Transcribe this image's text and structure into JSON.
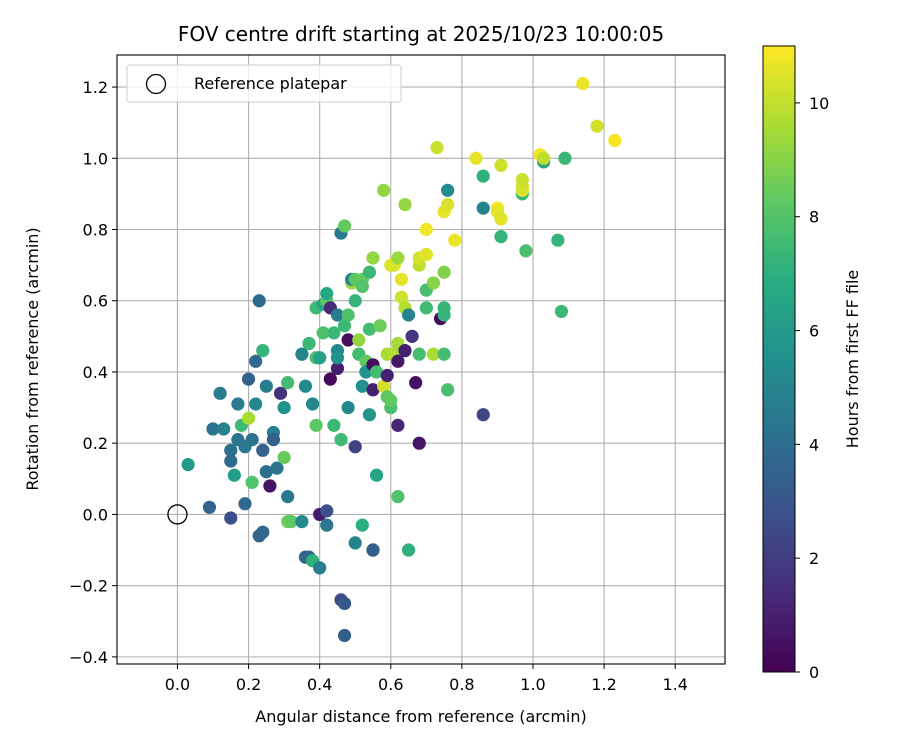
{
  "chart_data": {
    "type": "scatter",
    "title": "FOV centre drift starting at 2025/10/23 10:00:05",
    "xlabel": "Angular distance from reference (arcmin)",
    "ylabel": "Rotation from reference (arcmin)",
    "xlim": [
      -0.17,
      1.54
    ],
    "ylim": [
      -0.42,
      1.29
    ],
    "xticks": [
      0.0,
      0.2,
      0.4,
      0.6,
      0.8,
      1.0,
      1.2,
      1.4
    ],
    "xtick_labels": [
      "0.0",
      "0.2",
      "0.4",
      "0.6",
      "0.8",
      "1.0",
      "1.2",
      "1.4"
    ],
    "yticks": [
      -0.4,
      -0.2,
      0.0,
      0.2,
      0.4,
      0.6,
      0.8,
      1.0,
      1.2
    ],
    "ytick_labels": [
      "−0.4",
      "−0.2",
      "0.0",
      "0.2",
      "0.4",
      "0.6",
      "0.8",
      "1.0",
      "1.2"
    ],
    "grid": true,
    "legend": {
      "position": "top-left",
      "entries": [
        {
          "label": "Reference platepar",
          "marker": "open-circle"
        }
      ]
    },
    "reference_point": {
      "x": 0.0,
      "y": 0.0
    },
    "colorbar": {
      "label": "Hours from first FF file",
      "range": [
        0,
        11
      ],
      "ticks": [
        0,
        2,
        4,
        6,
        8,
        10
      ],
      "tick_labels": [
        "0",
        "2",
        "4",
        "6",
        "8",
        "10"
      ],
      "colormap": "viridis"
    },
    "points": [
      {
        "x": 0.03,
        "y": 0.14,
        "hours": 6.0
      },
      {
        "x": 0.09,
        "y": 0.02,
        "hours": 3.5
      },
      {
        "x": 0.1,
        "y": 0.24,
        "hours": 4.2
      },
      {
        "x": 0.12,
        "y": 0.34,
        "hours": 4.6
      },
      {
        "x": 0.13,
        "y": 0.24,
        "hours": 4.9
      },
      {
        "x": 0.15,
        "y": 0.18,
        "hours": 4.1
      },
      {
        "x": 0.15,
        "y": 0.15,
        "hours": 3.9
      },
      {
        "x": 0.15,
        "y": -0.01,
        "hours": 2.6
      },
      {
        "x": 0.16,
        "y": 0.11,
        "hours": 6.2
      },
      {
        "x": 0.17,
        "y": 0.21,
        "hours": 4.3
      },
      {
        "x": 0.17,
        "y": 0.31,
        "hours": 4.6
      },
      {
        "x": 0.18,
        "y": 0.25,
        "hours": 7.5
      },
      {
        "x": 0.19,
        "y": 0.03,
        "hours": 3.8
      },
      {
        "x": 0.19,
        "y": 0.19,
        "hours": 4.4
      },
      {
        "x": 0.2,
        "y": 0.38,
        "hours": 3.4
      },
      {
        "x": 0.2,
        "y": 0.27,
        "hours": 9.6
      },
      {
        "x": 0.21,
        "y": 0.09,
        "hours": 8.0
      },
      {
        "x": 0.21,
        "y": 0.21,
        "hours": 4.2
      },
      {
        "x": 0.22,
        "y": 0.31,
        "hours": 5.1
      },
      {
        "x": 0.22,
        "y": 0.43,
        "hours": 3.8
      },
      {
        "x": 0.23,
        "y": 0.6,
        "hours": 3.9
      },
      {
        "x": 0.23,
        "y": -0.06,
        "hours": 3.6
      },
      {
        "x": 0.24,
        "y": -0.05,
        "hours": 3.7
      },
      {
        "x": 0.24,
        "y": 0.18,
        "hours": 3.5
      },
      {
        "x": 0.24,
        "y": 0.46,
        "hours": 7.2
      },
      {
        "x": 0.25,
        "y": 0.12,
        "hours": 4.1
      },
      {
        "x": 0.25,
        "y": 0.36,
        "hours": 4.7
      },
      {
        "x": 0.26,
        "y": 0.08,
        "hours": 0.5
      },
      {
        "x": 0.27,
        "y": 0.23,
        "hours": 4.8
      },
      {
        "x": 0.27,
        "y": 0.21,
        "hours": 3.4
      },
      {
        "x": 0.28,
        "y": 0.13,
        "hours": 4.3
      },
      {
        "x": 0.29,
        "y": 0.34,
        "hours": 1.6
      },
      {
        "x": 0.3,
        "y": 0.3,
        "hours": 5.6
      },
      {
        "x": 0.3,
        "y": 0.16,
        "hours": 8.4
      },
      {
        "x": 0.31,
        "y": 0.37,
        "hours": 7.6
      },
      {
        "x": 0.31,
        "y": 0.05,
        "hours": 4.5
      },
      {
        "x": 0.31,
        "y": -0.02,
        "hours": 8.6
      },
      {
        "x": 0.32,
        "y": -0.02,
        "hours": 8.3
      },
      {
        "x": 0.35,
        "y": -0.02,
        "hours": 5.3
      },
      {
        "x": 0.35,
        "y": 0.45,
        "hours": 5.0
      },
      {
        "x": 0.36,
        "y": 0.36,
        "hours": 5.3
      },
      {
        "x": 0.36,
        "y": -0.12,
        "hours": 3.5
      },
      {
        "x": 0.37,
        "y": -0.12,
        "hours": 3.7
      },
      {
        "x": 0.37,
        "y": 0.48,
        "hours": 7.4
      },
      {
        "x": 0.38,
        "y": -0.13,
        "hours": 7.1
      },
      {
        "x": 0.38,
        "y": 0.31,
        "hours": 5.1
      },
      {
        "x": 0.39,
        "y": 0.25,
        "hours": 8.2
      },
      {
        "x": 0.39,
        "y": 0.44,
        "hours": 7.8
      },
      {
        "x": 0.39,
        "y": 0.58,
        "hours": 7.5
      },
      {
        "x": 0.4,
        "y": 0.44,
        "hours": 6.3
      },
      {
        "x": 0.4,
        "y": 0.0,
        "hours": 0.8
      },
      {
        "x": 0.4,
        "y": -0.15,
        "hours": 4.7
      },
      {
        "x": 0.41,
        "y": 0.59,
        "hours": 6.6
      },
      {
        "x": 0.41,
        "y": 0.51,
        "hours": 7.8
      },
      {
        "x": 0.42,
        "y": -0.03,
        "hours": 4.4
      },
      {
        "x": 0.42,
        "y": 0.01,
        "hours": 2.7
      },
      {
        "x": 0.42,
        "y": 0.6,
        "hours": 8.3
      },
      {
        "x": 0.42,
        "y": 0.62,
        "hours": 6.7
      },
      {
        "x": 0.43,
        "y": 0.58,
        "hours": 1.3
      },
      {
        "x": 0.43,
        "y": 0.38,
        "hours": 0.3
      },
      {
        "x": 0.44,
        "y": 0.25,
        "hours": 7.4
      },
      {
        "x": 0.44,
        "y": 0.51,
        "hours": 7.4
      },
      {
        "x": 0.45,
        "y": 0.46,
        "hours": 5.1
      },
      {
        "x": 0.45,
        "y": 0.41,
        "hours": 0.9
      },
      {
        "x": 0.45,
        "y": 0.56,
        "hours": 4.7
      },
      {
        "x": 0.45,
        "y": 0.44,
        "hours": 5.6
      },
      {
        "x": 0.46,
        "y": 0.79,
        "hours": 4.5
      },
      {
        "x": 0.46,
        "y": 0.21,
        "hours": 7.5
      },
      {
        "x": 0.46,
        "y": -0.24,
        "hours": 2.6
      },
      {
        "x": 0.47,
        "y": 0.81,
        "hours": 8.4
      },
      {
        "x": 0.47,
        "y": -0.25,
        "hours": 3.0
      },
      {
        "x": 0.47,
        "y": -0.34,
        "hours": 3.3
      },
      {
        "x": 0.47,
        "y": 0.53,
        "hours": 7.4
      },
      {
        "x": 0.48,
        "y": 0.49,
        "hours": 0.4
      },
      {
        "x": 0.48,
        "y": 0.56,
        "hours": 7.9
      },
      {
        "x": 0.48,
        "y": 0.3,
        "hours": 5.2
      },
      {
        "x": 0.49,
        "y": 0.65,
        "hours": 9.4
      },
      {
        "x": 0.49,
        "y": 0.66,
        "hours": 4.8
      },
      {
        "x": 0.5,
        "y": 0.66,
        "hours": 8.2
      },
      {
        "x": 0.5,
        "y": 0.6,
        "hours": 7.2
      },
      {
        "x": 0.5,
        "y": 0.19,
        "hours": 2.2
      },
      {
        "x": 0.5,
        "y": -0.08,
        "hours": 5.0
      },
      {
        "x": 0.51,
        "y": 0.45,
        "hours": 7.6
      },
      {
        "x": 0.51,
        "y": 0.49,
        "hours": 9.2
      },
      {
        "x": 0.52,
        "y": 0.36,
        "hours": 5.6
      },
      {
        "x": 0.52,
        "y": 0.66,
        "hours": 8.4
      },
      {
        "x": 0.52,
        "y": 0.64,
        "hours": 8.0
      },
      {
        "x": 0.52,
        "y": -0.03,
        "hours": 7.0
      },
      {
        "x": 0.53,
        "y": 0.43,
        "hours": 8.3
      },
      {
        "x": 0.53,
        "y": 0.4,
        "hours": 5.6
      },
      {
        "x": 0.54,
        "y": 0.68,
        "hours": 7.4
      },
      {
        "x": 0.54,
        "y": 0.52,
        "hours": 7.6
      },
      {
        "x": 0.54,
        "y": 0.28,
        "hours": 5.8
      },
      {
        "x": 0.55,
        "y": 0.35,
        "hours": 1.0
      },
      {
        "x": 0.55,
        "y": 0.72,
        "hours": 9.2
      },
      {
        "x": 0.55,
        "y": 0.42,
        "hours": 0.4
      },
      {
        "x": 0.55,
        "y": -0.1,
        "hours": 4.4
      },
      {
        "x": 0.55,
        "y": -0.1,
        "hours": 3.3
      },
      {
        "x": 0.56,
        "y": 0.11,
        "hours": 6.4
      },
      {
        "x": 0.56,
        "y": 0.4,
        "hours": 7.6
      },
      {
        "x": 0.57,
        "y": 0.53,
        "hours": 8.5
      },
      {
        "x": 0.58,
        "y": 0.91,
        "hours": 9.2
      },
      {
        "x": 0.58,
        "y": 0.36,
        "hours": 10.3
      },
      {
        "x": 0.59,
        "y": 0.33,
        "hours": 8.2
      },
      {
        "x": 0.59,
        "y": 0.45,
        "hours": 9.6
      },
      {
        "x": 0.59,
        "y": 0.39,
        "hours": 1.0
      },
      {
        "x": 0.6,
        "y": 0.3,
        "hours": 7.8
      },
      {
        "x": 0.6,
        "y": 0.32,
        "hours": 8.3
      },
      {
        "x": 0.6,
        "y": 0.7,
        "hours": 10.5
      },
      {
        "x": 0.61,
        "y": 0.7,
        "hours": 10.4
      },
      {
        "x": 0.61,
        "y": 0.45,
        "hours": 9.8
      },
      {
        "x": 0.62,
        "y": 0.25,
        "hours": 1.2
      },
      {
        "x": 0.62,
        "y": 0.05,
        "hours": 7.9
      },
      {
        "x": 0.62,
        "y": 0.48,
        "hours": 9.5
      },
      {
        "x": 0.62,
        "y": 0.72,
        "hours": 9.4
      },
      {
        "x": 0.62,
        "y": 0.43,
        "hours": 0.7
      },
      {
        "x": 0.63,
        "y": 0.61,
        "hours": 10.2
      },
      {
        "x": 0.63,
        "y": 0.66,
        "hours": 10.6
      },
      {
        "x": 0.64,
        "y": 0.87,
        "hours": 9.2
      },
      {
        "x": 0.64,
        "y": 0.46,
        "hours": 1.0
      },
      {
        "x": 0.64,
        "y": 0.58,
        "hours": 9.8
      },
      {
        "x": 0.65,
        "y": 0.56,
        "hours": 5.0
      },
      {
        "x": 0.65,
        "y": -0.1,
        "hours": 7.1
      },
      {
        "x": 0.66,
        "y": 0.5,
        "hours": 1.7
      },
      {
        "x": 0.67,
        "y": 0.37,
        "hours": 0.5
      },
      {
        "x": 0.68,
        "y": 0.45,
        "hours": 7.7
      },
      {
        "x": 0.68,
        "y": 0.2,
        "hours": 0.6
      },
      {
        "x": 0.68,
        "y": 0.7,
        "hours": 9.9
      },
      {
        "x": 0.68,
        "y": 0.72,
        "hours": 10.3
      },
      {
        "x": 0.7,
        "y": 0.8,
        "hours": 10.8
      },
      {
        "x": 0.7,
        "y": 0.73,
        "hours": 10.5
      },
      {
        "x": 0.7,
        "y": 0.63,
        "hours": 7.7
      },
      {
        "x": 0.7,
        "y": 0.58,
        "hours": 7.5
      },
      {
        "x": 0.72,
        "y": 0.45,
        "hours": 9.6
      },
      {
        "x": 0.72,
        "y": 0.65,
        "hours": 9.0
      },
      {
        "x": 0.73,
        "y": 1.03,
        "hours": 10.1
      },
      {
        "x": 0.74,
        "y": 0.55,
        "hours": 0.2
      },
      {
        "x": 0.75,
        "y": 0.56,
        "hours": 7.2
      },
      {
        "x": 0.75,
        "y": 0.58,
        "hours": 7.3
      },
      {
        "x": 0.75,
        "y": 0.85,
        "hours": 10.6
      },
      {
        "x": 0.75,
        "y": 0.68,
        "hours": 8.9
      },
      {
        "x": 0.75,
        "y": 0.45,
        "hours": 7.7
      },
      {
        "x": 0.76,
        "y": 0.91,
        "hours": 5.3
      },
      {
        "x": 0.76,
        "y": 0.87,
        "hours": 10.4
      },
      {
        "x": 0.76,
        "y": 0.35,
        "hours": 7.8
      },
      {
        "x": 0.78,
        "y": 0.77,
        "hours": 10.7
      },
      {
        "x": 0.84,
        "y": 1.0,
        "hours": 10.6
      },
      {
        "x": 0.86,
        "y": 0.28,
        "hours": 2.3
      },
      {
        "x": 0.86,
        "y": 0.95,
        "hours": 7.1
      },
      {
        "x": 0.86,
        "y": 0.86,
        "hours": 5.0
      },
      {
        "x": 0.9,
        "y": 0.86,
        "hours": 10.8
      },
      {
        "x": 0.9,
        "y": 0.85,
        "hours": 10.6
      },
      {
        "x": 0.91,
        "y": 0.98,
        "hours": 10.2
      },
      {
        "x": 0.91,
        "y": 0.78,
        "hours": 7.2
      },
      {
        "x": 0.91,
        "y": 0.83,
        "hours": 10.5
      },
      {
        "x": 0.97,
        "y": 0.9,
        "hours": 7.4
      },
      {
        "x": 0.97,
        "y": 0.91,
        "hours": 10.5
      },
      {
        "x": 0.97,
        "y": 0.92,
        "hours": 10.3
      },
      {
        "x": 0.97,
        "y": 0.94,
        "hours": 10.1
      },
      {
        "x": 0.98,
        "y": 0.74,
        "hours": 7.8
      },
      {
        "x": 1.02,
        "y": 1.01,
        "hours": 10.8
      },
      {
        "x": 1.03,
        "y": 0.99,
        "hours": 6.6
      },
      {
        "x": 1.03,
        "y": 1.0,
        "hours": 9.9
      },
      {
        "x": 1.07,
        "y": 0.77,
        "hours": 7.2
      },
      {
        "x": 1.08,
        "y": 0.57,
        "hours": 7.4
      },
      {
        "x": 1.09,
        "y": 1.0,
        "hours": 7.4
      },
      {
        "x": 1.14,
        "y": 1.21,
        "hours": 10.7
      },
      {
        "x": 1.18,
        "y": 1.09,
        "hours": 10.3
      },
      {
        "x": 1.23,
        "y": 1.05,
        "hours": 10.9
      }
    ]
  }
}
